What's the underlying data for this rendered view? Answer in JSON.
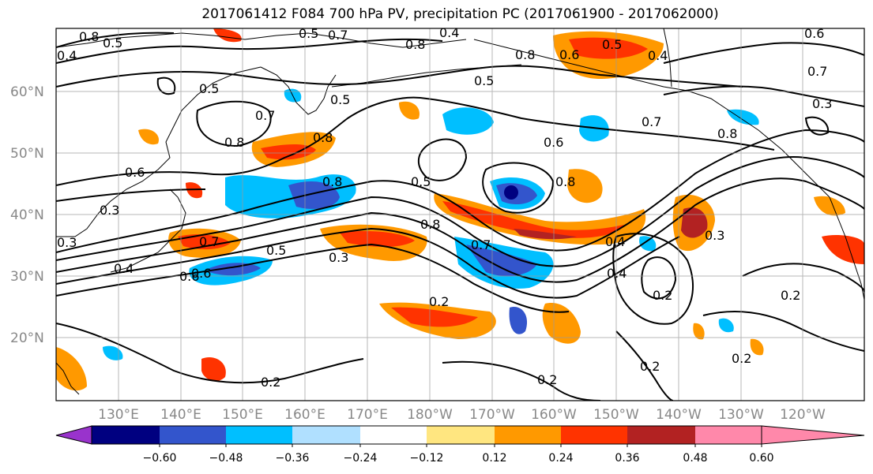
{
  "title": "2017061412 F084 700 hPa PV, precipitation PC (2017061900 - 2017062000)",
  "lon_labels": [
    "130°E",
    "140°E",
    "150°E",
    "160°E",
    "170°E",
    "180°W",
    "170°W",
    "160°W",
    "150°W",
    "140°W",
    "130°W",
    "120°W"
  ],
  "lat_labels": [
    "60°N",
    "50°N",
    "40°N",
    "30°N",
    "20°N"
  ],
  "contour_labels": [
    "0.8",
    "0.5",
    "0.4",
    "0.5",
    "0.5",
    "0.7",
    "0.8",
    "0.6",
    "0.8",
    "0.8",
    "0.5",
    "0.8",
    "0.7",
    "0.8",
    "0.6",
    "0.8",
    "0.7",
    "0.6",
    "0.5",
    "0.7",
    "0.6",
    "0.5",
    "0.4",
    "0.3",
    "0.8",
    "0.2",
    "0.2",
    "0.2",
    "0.3",
    "0.4",
    "0.4",
    "0.2",
    "0.2",
    "0.6",
    "0.5",
    "0.4",
    "0.6",
    "0.7",
    "0.3",
    "0.8",
    "0.3",
    "0.2",
    "0.7",
    "0.4",
    "0.3",
    "0.2",
    "0.5"
  ],
  "colorbar": {
    "ticks": [
      "−0.60",
      "−0.48",
      "−0.36",
      "−0.24",
      "−0.12",
      "0.12",
      "0.24",
      "0.36",
      "0.48",
      "0.60"
    ],
    "colors": [
      "#9933cc",
      "#000080",
      "#3355cc",
      "#00bfff",
      "#b0e0ff",
      "#ffffff",
      "#ffe680",
      "#ff9900",
      "#ff3300",
      "#b22222",
      "#ff88aa"
    ]
  }
}
